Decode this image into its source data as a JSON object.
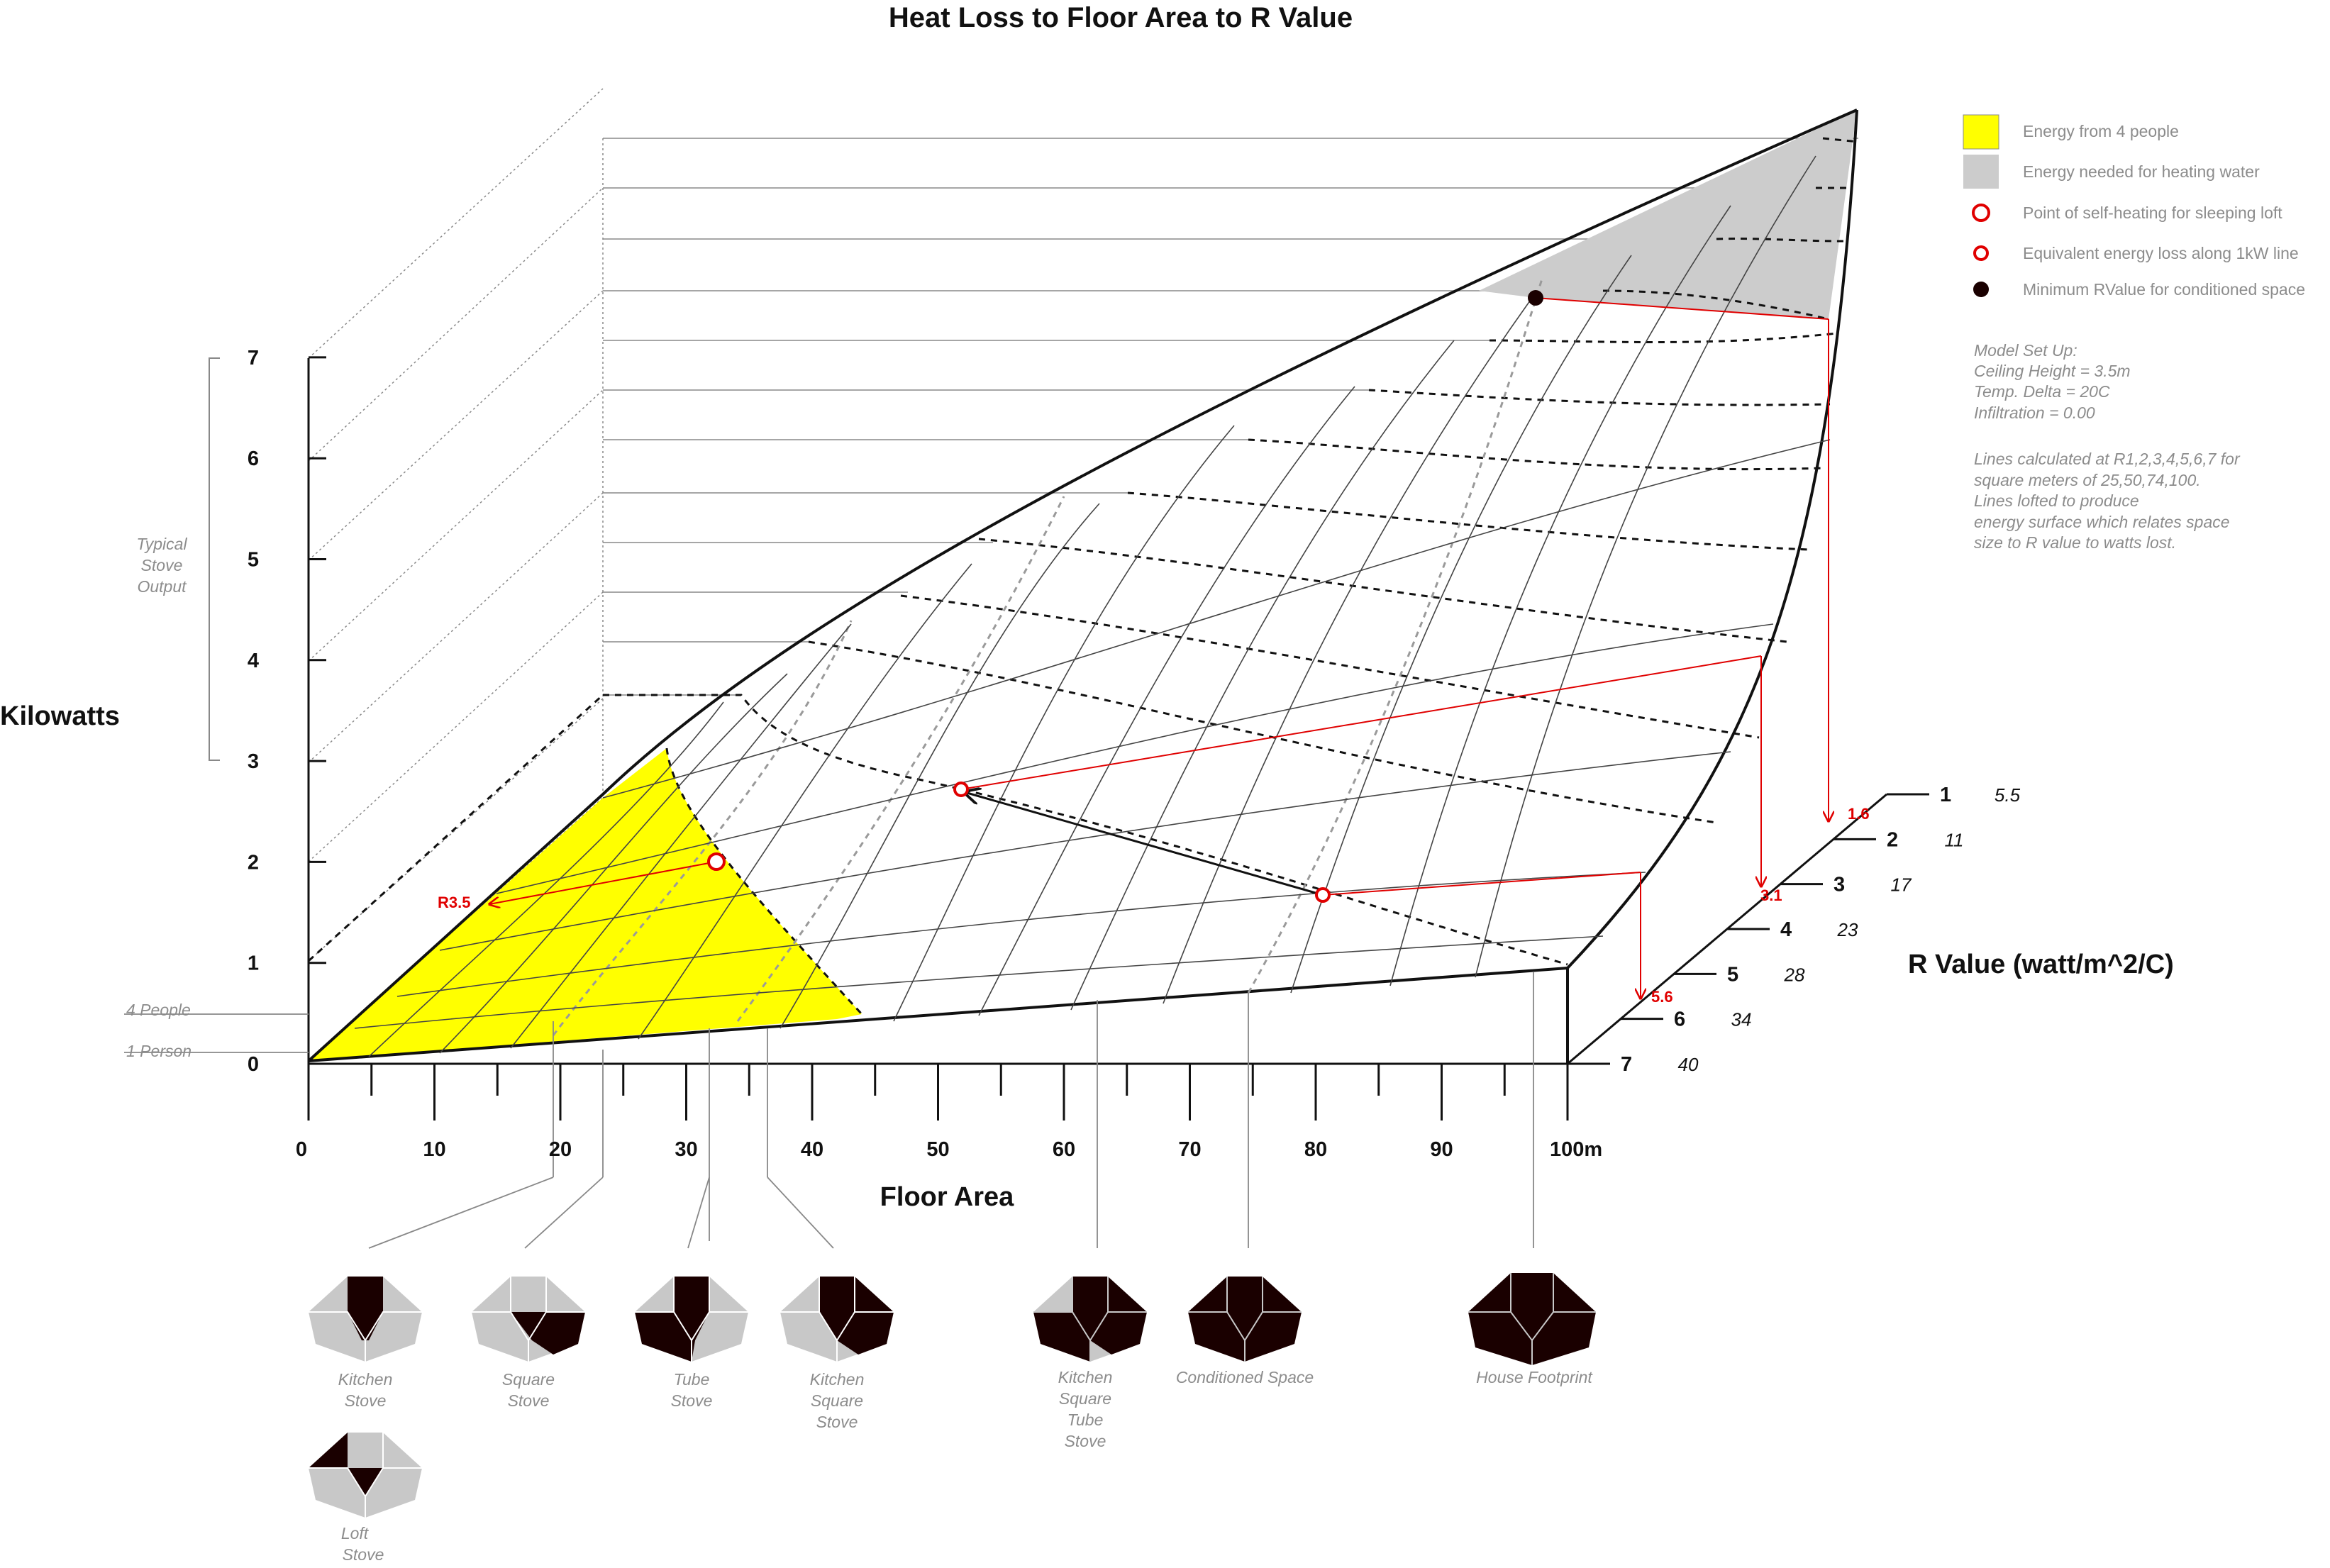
{
  "title": "Heat Loss to Floor Area to R Value",
  "axes": {
    "y_label": "Kilowatts",
    "x_label": "Floor Area",
    "z_label": "R Value (watt/m^2/C)",
    "y_ticks": [
      "0",
      "1",
      "2",
      "3",
      "4",
      "5",
      "6",
      "7"
    ],
    "x_ticks": [
      "0",
      "10",
      "20",
      "30",
      "40",
      "50",
      "60",
      "70",
      "80",
      "90",
      "100m"
    ],
    "r_ticks": [
      "1",
      "2",
      "3",
      "4",
      "5",
      "6",
      "7"
    ],
    "r_watts": [
      "5.5",
      "11",
      "17",
      "23",
      "28",
      "34",
      "40"
    ]
  },
  "annotations": {
    "stove_output": "Typical Stove Output",
    "four_people": "4 People",
    "one_person": "1 Person",
    "r_labels": [
      "R3.5",
      "1.6",
      "3.1",
      "5.6"
    ]
  },
  "legend": [
    {
      "label": "Energy from 4 people",
      "color": "#ffff00"
    },
    {
      "label": "Energy needed for heating water",
      "color": "#cccccc"
    },
    {
      "label": "Point of self-heating for sleeping loft",
      "color": "#e00000"
    },
    {
      "label": "Equivalent energy loss along 1kW line",
      "color": "#e00000"
    },
    {
      "label": "Minimum RValue for conditioned space",
      "color": "#1a0000"
    }
  ],
  "notes": {
    "setup": [
      "Model Set Up:",
      "Ceiling Height = 3.5m",
      "Temp. Delta = 20C",
      "Infiltration = 0.00"
    ],
    "calc": [
      "Lines calculated at R1,2,3,4,5,6,7 for",
      "square meters of 25,50,74,100.",
      "Lines lofted to produce",
      "energy surface which relates space",
      "size to R value to watts lost."
    ]
  },
  "footprints": [
    {
      "label": "Kitchen Stove"
    },
    {
      "label": "Square Stove"
    },
    {
      "label": "Tube Stove"
    },
    {
      "label": "Kitchen Square Stove"
    },
    {
      "label": "Kitchen Square Tube Stove"
    },
    {
      "label": "Conditioned Space"
    },
    {
      "label": "House Footprint"
    },
    {
      "label": "Loft Stove"
    }
  ],
  "colors": {
    "yellow": "#ffff00",
    "grey": "#cccccc",
    "red": "#e00000",
    "dark": "#1a0000"
  }
}
